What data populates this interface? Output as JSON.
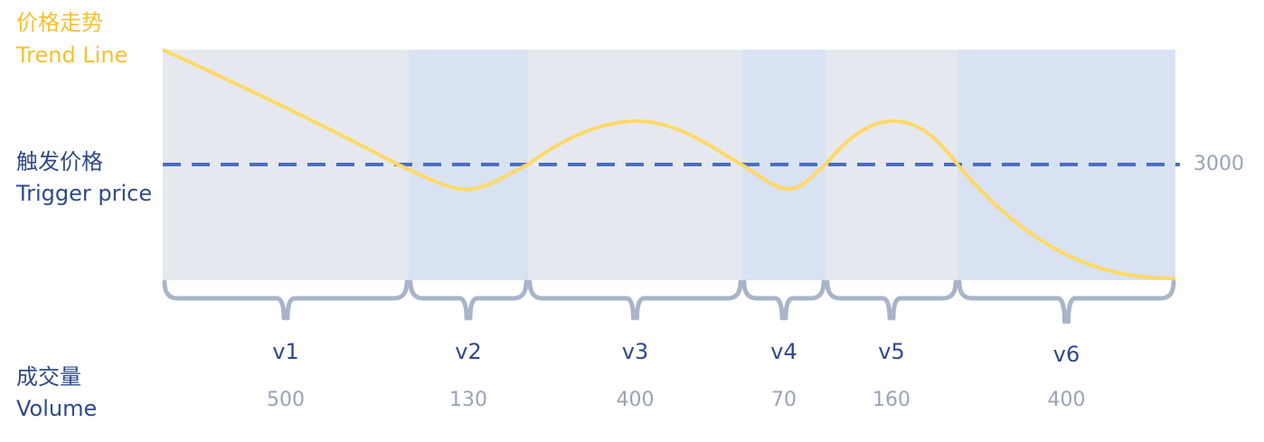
{
  "trend_label": {
    "zh": "价格走势",
    "en": "Trend Line"
  },
  "trigger_label": {
    "zh": "触发价格",
    "en": "Trigger price"
  },
  "trigger_value": "3000",
  "volume_label": {
    "zh": "成交量",
    "en": "Volume"
  },
  "segments": [
    {
      "name": "v1",
      "volume": 500
    },
    {
      "name": "v2",
      "volume": 130
    },
    {
      "name": "v3",
      "volume": 400
    },
    {
      "name": "v4",
      "volume": 70
    },
    {
      "name": "v5",
      "volume": 160
    },
    {
      "name": "v6",
      "volume": 400
    }
  ]
}
